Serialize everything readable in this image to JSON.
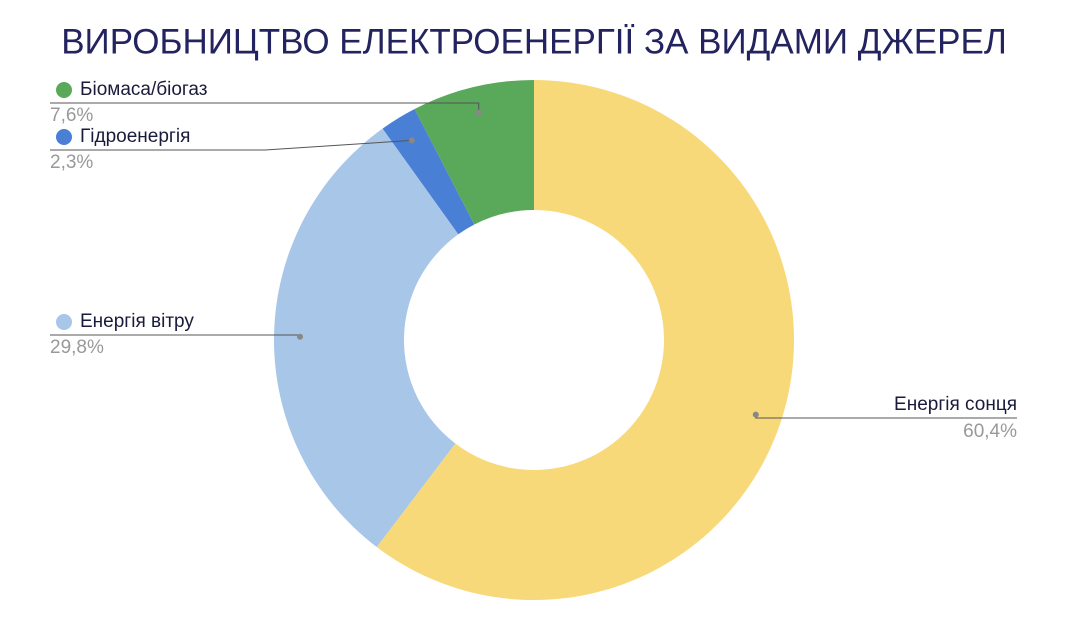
{
  "chart_data": {
    "type": "donut",
    "title": "ВИРОБНИЦТВО ЕЛЕКТРОЕНЕРГІЇ ЗА ВИДАМИ ДЖЕРЕЛ",
    "categories": [
      "Енергія сонця",
      "Енергія вітру",
      "Гідроенергія",
      "Біомаса/біогаз"
    ],
    "values": [
      60.4,
      29.8,
      2.3,
      7.6
    ],
    "value_labels": [
      "60,4%",
      "29,8%",
      "2,3%",
      "7,6%"
    ],
    "colors": [
      "#f8d97a",
      "#a8c6e8",
      "#4a7fd6",
      "#5aa85a"
    ]
  }
}
